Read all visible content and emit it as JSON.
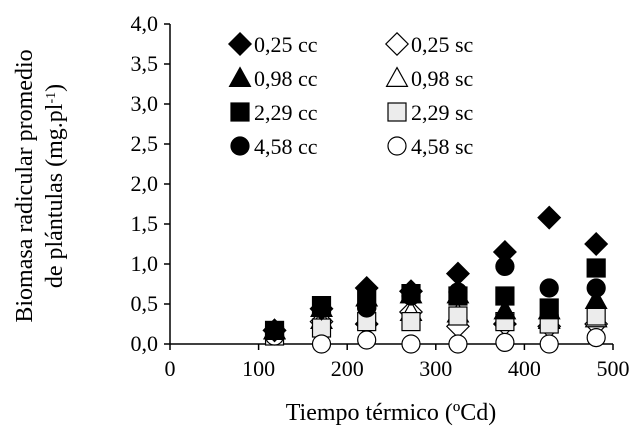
{
  "chart_data": {
    "type": "scatter",
    "xlabel": "Tiempo térmico (ºCd)",
    "ylabel_line1": "Biomasa radicular promedio",
    "ylabel_line2_base": "de plántulas (mg.pl",
    "ylabel_line2_sup": "-1",
    "ylabel_line2_end": ")",
    "xlim": [
      0,
      500
    ],
    "ylim": [
      0.0,
      4.0
    ],
    "xticks": [
      0,
      100,
      200,
      300,
      400,
      500
    ],
    "xtick_labels": [
      "0",
      "100",
      "200",
      "300",
      "400",
      "500"
    ],
    "yticks": [
      0.0,
      0.5,
      1.0,
      1.5,
      2.0,
      2.5,
      3.0,
      3.5,
      4.0
    ],
    "ytick_labels": [
      "0,0",
      "0,5",
      "1,0",
      "1,5",
      "2,0",
      "2,5",
      "3,0",
      "3,5",
      "4,0"
    ],
    "grid": false,
    "legend_position": "top-right",
    "series": [
      {
        "name": "0,25 cc",
        "marker": "diamond",
        "filled": true,
        "x": [
          118,
          171,
          222,
          272,
          325,
          378,
          428,
          481
        ],
        "y": [
          0.17,
          0.44,
          0.7,
          0.66,
          0.88,
          1.15,
          1.58,
          1.25
        ]
      },
      {
        "name": "0,25 sc",
        "marker": "diamond",
        "filled": false,
        "x": [
          118,
          171,
          222,
          272,
          325,
          378,
          428,
          481
        ],
        "y": [
          0.17,
          0.28,
          0.25,
          0.4,
          0.22,
          0.25,
          0.22,
          0.25
        ]
      },
      {
        "name": "0,98 cc",
        "marker": "triangle",
        "filled": true,
        "x": [
          118,
          171,
          222,
          272,
          325,
          378,
          428,
          481
        ],
        "y": [
          0.17,
          0.45,
          0.58,
          0.62,
          0.62,
          0.42,
          0.42,
          0.55
        ]
      },
      {
        "name": "0,98 sc",
        "marker": "triangle",
        "filled": false,
        "x": [
          118,
          171,
          222,
          272,
          325,
          378,
          428,
          481
        ],
        "y": [
          0.17,
          0.3,
          0.35,
          0.4,
          0.38,
          0.35,
          0.3,
          0.32
        ]
      },
      {
        "name": "2,29 cc",
        "marker": "square",
        "filled": true,
        "x": [
          118,
          171,
          222,
          272,
          325,
          378,
          428,
          481
        ],
        "y": [
          0.17,
          0.48,
          0.55,
          0.63,
          0.6,
          0.6,
          0.45,
          0.95
        ]
      },
      {
        "name": "2,29 sc",
        "marker": "square",
        "filled": false,
        "x": [
          118,
          171,
          222,
          272,
          325,
          378,
          428,
          481
        ],
        "y": [
          0.1,
          0.2,
          0.28,
          0.28,
          0.35,
          0.28,
          0.25,
          0.35
        ]
      },
      {
        "name": "4,58 cc",
        "marker": "circle",
        "filled": true,
        "x": [
          118,
          171,
          222,
          272,
          325,
          378,
          428,
          481
        ],
        "y": [
          0.17,
          0.45,
          0.45,
          0.6,
          0.65,
          0.97,
          0.7,
          0.7
        ]
      },
      {
        "name": "4,58 sc",
        "marker": "circle",
        "filled": false,
        "x": [
          118,
          171,
          222,
          272,
          325,
          378,
          428,
          481
        ],
        "y": [
          0.1,
          0.0,
          0.05,
          0.0,
          0.0,
          0.02,
          0.0,
          0.08
        ]
      }
    ]
  }
}
